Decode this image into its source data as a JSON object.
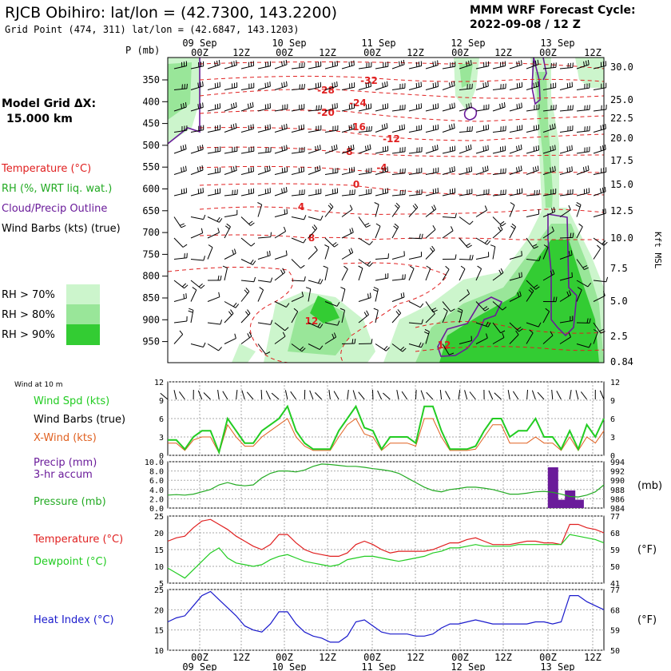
{
  "header": {
    "title": "RJCB Obihiro:  lat/lon = (42.7300, 143.2200)",
    "grid_point": "Grid Point (474, 311) lat/lon = (42.6847, 143.1203)",
    "forecast_label": "MMM WRF Forecast Cycle:",
    "cycle": "2022-09-08 / 12  Z"
  },
  "left_legend": {
    "model_grid": "Model Grid ΔX:",
    "grid_size": "15.000 km",
    "temperature": "Temperature (°C)",
    "rh": "RH (%, WRT liq. wat.)",
    "cloud": "Cloud/Precip Outline",
    "barbs": "Wind Barbs (kts) (true)",
    "rh70": "RH > 70%",
    "rh80": "RH > 80%",
    "rh90": "RH > 90%",
    "colors": {
      "rh70": "#ccf5cc",
      "rh80": "#99e699",
      "rh90": "#33cc33"
    }
  },
  "time_axis": {
    "hour_labels": [
      "00Z",
      "12Z",
      "00Z",
      "12Z",
      "00Z",
      "12Z",
      "00Z",
      "12Z",
      "00Z",
      "12Z"
    ],
    "date_labels": [
      "09 Sep",
      "10 Sep",
      "11 Sep",
      "12 Sep",
      "13 Sep"
    ]
  },
  "chart_data": [
    {
      "type": "heatmap",
      "title": "",
      "ylabel": "P (mb)",
      "y2label": "Kft MSL",
      "pressure_ticks": [
        "350",
        "400",
        "450",
        "500",
        "550",
        "600",
        "650",
        "700",
        "750",
        "800",
        "850",
        "900",
        "950"
      ],
      "height_ticks": [
        "30.0",
        "25.0",
        "22.5",
        "20.0",
        "17.5",
        "15.0",
        "12.5",
        "10.0",
        "7.5",
        "5.0",
        "2.5",
        "0.84"
      ],
      "temperature_contour_labels": [
        "-32",
        "-28",
        "-24",
        "-20",
        "-16",
        "-12",
        "-8",
        "-4",
        "0",
        "4",
        "8",
        "12",
        "12"
      ]
    },
    {
      "type": "line",
      "note": "Wind at 10 m",
      "ylim": [
        0,
        12
      ],
      "yticks": [
        "0",
        "3",
        "6",
        "9",
        "12"
      ],
      "series": [
        {
          "name": "Wind Spd (kts)",
          "color": "#22cc22",
          "values": [
            2.5,
            2.5,
            1,
            3,
            4,
            4,
            0.5,
            6,
            4,
            2,
            2,
            4,
            5,
            6,
            8,
            4,
            2,
            1,
            1,
            1,
            4,
            6,
            8,
            4.5,
            4,
            1,
            3,
            3,
            3,
            2,
            8,
            8,
            4,
            1,
            1,
            1,
            1.5,
            4,
            6,
            6,
            3,
            4,
            4,
            6,
            3,
            3,
            1,
            4,
            1,
            5,
            3,
            6
          ]
        },
        {
          "name": "X-Wind (kts)",
          "color": "#e06020",
          "values": [
            2,
            2,
            0.8,
            2.5,
            3,
            3,
            0.4,
            5,
            3,
            1.5,
            1.5,
            3,
            4,
            5,
            6,
            3,
            1.5,
            0.8,
            0.8,
            0.8,
            3,
            5,
            6,
            3.5,
            3,
            0.8,
            2,
            2,
            2,
            1.5,
            6,
            6,
            3,
            0.8,
            0.8,
            0.8,
            1,
            3,
            5,
            5,
            2,
            2,
            2,
            3,
            2,
            2,
            0.8,
            3,
            0.8,
            3,
            2,
            4
          ]
        }
      ]
    },
    {
      "type": "bar",
      "ylim": [
        0,
        10
      ],
      "yticks": [
        "0.0",
        "2.0",
        "4.0",
        "6.0",
        "8.0",
        "10.0"
      ],
      "y2ticks": [
        "984",
        "986",
        "988",
        "990",
        "992",
        "994"
      ],
      "y2unit": "(mb)",
      "precip": {
        "name": "Precip (mm) 3-hr accum",
        "color": "#6a1b9a",
        "x_index": [
          45,
          46,
          47,
          48
        ],
        "values": [
          8.8,
          1.8,
          3.8,
          1.8
        ]
      },
      "pressure": {
        "name": "Pressure (mb)",
        "color": "#22aa22",
        "values": [
          986.8,
          986.9,
          986.8,
          987,
          987.5,
          988,
          989,
          989.5,
          989,
          988.8,
          989,
          990.5,
          991.5,
          992,
          992,
          991.8,
          992.2,
          993,
          993.5,
          993.4,
          993.2,
          993,
          993,
          992.8,
          992.5,
          992.3,
          992,
          991.5,
          990.5,
          989.5,
          988.5,
          987.8,
          987.5,
          988,
          988.2,
          988.5,
          988.5,
          988.3,
          988,
          987.5,
          987,
          987,
          987.2,
          987.5,
          987.6,
          987.4,
          987,
          986.5,
          986.4,
          986.8,
          987.5,
          989
        ]
      }
    },
    {
      "type": "line",
      "ylim": [
        5,
        25
      ],
      "yticks": [
        "5",
        "10",
        "15",
        "20",
        "25"
      ],
      "y2ticks": [
        "41",
        "50",
        "59",
        "68",
        "77"
      ],
      "y2unit": "(°F)",
      "series": [
        {
          "name": "Temperature (°C)",
          "color": "#e02020",
          "values": [
            17.5,
            18.5,
            19,
            21.5,
            23.5,
            24,
            22.5,
            21,
            19,
            17.5,
            16,
            15,
            16.5,
            19.5,
            19.5,
            17,
            15,
            14,
            13.5,
            13,
            13,
            14,
            16.5,
            17.5,
            16.5,
            15,
            14,
            14.5,
            14.5,
            14.5,
            14.5,
            15,
            16,
            17,
            17,
            18,
            18.5,
            17.5,
            16.5,
            16.5,
            16.5,
            17,
            17.5,
            17.5,
            17,
            17,
            16.5,
            22.5,
            22.5,
            21.5,
            21,
            20
          ]
        },
        {
          "name": "Dewpoint (°C)",
          "color": "#22cc22",
          "values": [
            9.5,
            8,
            6.5,
            9,
            11.5,
            14,
            15.5,
            12.5,
            11,
            10.5,
            10,
            10.5,
            12,
            13,
            13.5,
            12.5,
            11.5,
            11,
            10.5,
            10,
            10.5,
            12,
            12.5,
            13,
            13,
            12.5,
            12,
            11.5,
            12,
            12.5,
            13,
            14,
            14.5,
            15.5,
            15.5,
            16,
            16.5,
            16,
            16,
            16,
            16,
            16.5,
            16.5,
            16.5,
            16.5,
            16.5,
            16.5,
            19.5,
            19,
            18.5,
            18,
            17
          ]
        }
      ]
    },
    {
      "type": "line",
      "ylim": [
        10,
        25
      ],
      "yticks": [
        "10",
        "15",
        "20",
        "25"
      ],
      "y2ticks": [
        "50",
        "59",
        "68",
        "77"
      ],
      "y2unit": "(°F)",
      "series": [
        {
          "name": "Heat Index (°C)",
          "color": "#1a1acc",
          "values": [
            17,
            18,
            18.5,
            21,
            23.5,
            24.5,
            22.5,
            20.5,
            18.5,
            16,
            15,
            14.5,
            16.5,
            19.5,
            19.5,
            16.5,
            14.5,
            13.5,
            13,
            12,
            12,
            13.5,
            17,
            17.5,
            16,
            14.5,
            14,
            14,
            14,
            13.5,
            13.5,
            14,
            15.5,
            16.5,
            16.5,
            17,
            17.5,
            17,
            16.5,
            16.5,
            16.5,
            16.5,
            16.5,
            17,
            17,
            16.5,
            17,
            23.5,
            23.5,
            22,
            21,
            20
          ]
        }
      ]
    }
  ],
  "panel_labels": {
    "wind10": "Wind at 10 m",
    "wspd": "Wind Spd (kts)",
    "wbarb": "Wind Barbs (true)",
    "xwind": "X-Wind (kts)",
    "precip1": "Precip (mm)",
    "precip2": "3-hr accum",
    "pressure": "Pressure (mb)",
    "temp": "Temperature (°C)",
    "dew": "Dewpoint (°C)",
    "heat": "Heat Index (°C)",
    "unit_mb": "(mb)",
    "unit_f": "(°F)"
  }
}
